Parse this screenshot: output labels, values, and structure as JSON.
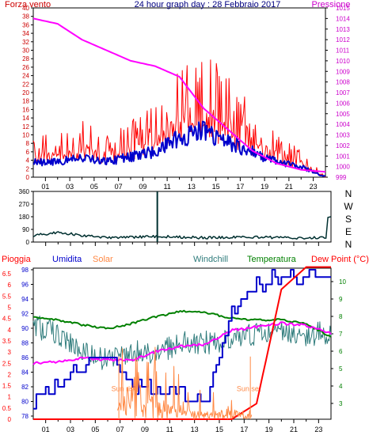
{
  "header": {
    "left_label": "Forza vento",
    "title": "24 hour graph day : 28 Febbraio 2017",
    "right_label": "Pressione"
  },
  "colors": {
    "wind_gust": "#ff0000",
    "wind_avg": "#0000cc",
    "pressure": "#ff00ff",
    "direction": "#003030",
    "rain": "#ff0000",
    "humidity": "#0000cc",
    "solar": "#ff8844",
    "windchill": "#2e7b7b",
    "temperature": "#008000",
    "dew_point": "#ff00ff",
    "pressure_axis_text": "#cc00cc",
    "wind_axis_text": "#cc0000",
    "title_text": "#000080"
  },
  "chart_data": [
    {
      "type": "line",
      "title": "24 hour graph day : 28 Febbraio 2017",
      "x": [
        0,
        2,
        4,
        6,
        8,
        10,
        12,
        14,
        16,
        18,
        20,
        22,
        24
      ],
      "series": [
        {
          "name": "Forza vento",
          "values": [
            6,
            6,
            8,
            6,
            8,
            10,
            16,
            18,
            14,
            10,
            6,
            4,
            0
          ]
        },
        {
          "name": "Pressione",
          "values": [
            1014,
            1013.5,
            1012,
            1011,
            1010,
            1009.5,
            1008.5,
            1005.5,
            1003.5,
            1001.5,
            1000.3,
            999.7,
            999.5
          ]
        }
      ],
      "yticks_left": [
        "0",
        "2",
        "4",
        "6",
        "8",
        "10",
        "12",
        "14",
        "16",
        "18",
        "20",
        "22",
        "24",
        "26",
        "28",
        "30",
        "32",
        "34",
        "36",
        "38",
        "40"
      ],
      "yticks_right": [
        "999",
        "1000",
        "1001",
        "1002",
        "1003",
        "1004",
        "1005",
        "1006",
        "1007",
        "1008",
        "1009",
        "1010",
        "1011",
        "1012",
        "1013",
        "1014",
        "1015"
      ],
      "xticks": [
        "01",
        "03",
        "05",
        "07",
        "09",
        "11",
        "13",
        "15",
        "17",
        "19",
        "21",
        "23"
      ],
      "ylim_left": [
        0,
        40
      ],
      "ylim_right": [
        999,
        1015
      ]
    },
    {
      "type": "line",
      "x": [
        0,
        2,
        4,
        6,
        8,
        10,
        12,
        14,
        16,
        18,
        20,
        22,
        23.6,
        24
      ],
      "series": [
        {
          "name": "Direzione vento",
          "values": [
            45,
            70,
            45,
            30,
            35,
            40,
            35,
            30,
            35,
            35,
            30,
            30,
            30,
            175
          ]
        }
      ],
      "yticks_left": [
        "0",
        "90",
        "180",
        "270",
        "360"
      ],
      "yticks_right": [
        "N",
        "W",
        "S",
        "E",
        "N"
      ],
      "ylim": [
        0,
        360
      ]
    },
    {
      "type": "line",
      "x": [
        0,
        2,
        4,
        6,
        8,
        10,
        12,
        14,
        16,
        18,
        20,
        22,
        24
      ],
      "series": [
        {
          "name": "Pioggia",
          "values": [
            0,
            0,
            0,
            0,
            0,
            0,
            0,
            0,
            0,
            0.7,
            5.8,
            6.8,
            6.8
          ]
        },
        {
          "name": "Umidita",
          "values": [
            80,
            82,
            85,
            86,
            82,
            82,
            81,
            80,
            92,
            96,
            97,
            97,
            97
          ]
        },
        {
          "name": "Solar",
          "values": [
            0,
            0,
            0,
            0,
            2,
            1,
            0.5,
            0.3,
            0.5,
            0,
            0,
            0,
            0
          ]
        },
        {
          "name": "Windchill",
          "values": [
            7.5,
            7,
            6,
            5.5,
            6,
            6,
            6.5,
            6.5,
            6.5,
            7,
            7.2,
            7,
            7
          ]
        },
        {
          "name": "Temperatura",
          "values": [
            8,
            7.8,
            7.5,
            7.3,
            7.6,
            8,
            8.3,
            8.2,
            7.9,
            7.8,
            7.8,
            7.6,
            6.8
          ]
        },
        {
          "name": "Dew Point (°C)",
          "values": [
            5.3,
            5.4,
            5.6,
            5.5,
            5.5,
            6.0,
            6.3,
            6.4,
            7.2,
            7.4,
            7.6,
            7.5,
            7.0
          ]
        }
      ],
      "yticks_left_outer": [
        "0",
        "0.5",
        "1",
        "1.5",
        "2",
        "2.5",
        "3",
        "3.5",
        "4",
        "4.5",
        "5",
        "5.5",
        "6",
        "6.5"
      ],
      "yticks_left_inner": [
        "78",
        "80",
        "82",
        "84",
        "86",
        "88",
        "90",
        "92",
        "94",
        "96",
        "98"
      ],
      "yticks_right": [
        "3",
        "4",
        "5",
        "6",
        "7",
        "8",
        "9",
        "10"
      ],
      "xticks": [
        "01",
        "03",
        "05",
        "07",
        "09",
        "11",
        "13",
        "15",
        "17",
        "19",
        "21",
        "23"
      ],
      "annotations": [
        "Sun rise",
        "Sun set"
      ]
    }
  ]
}
